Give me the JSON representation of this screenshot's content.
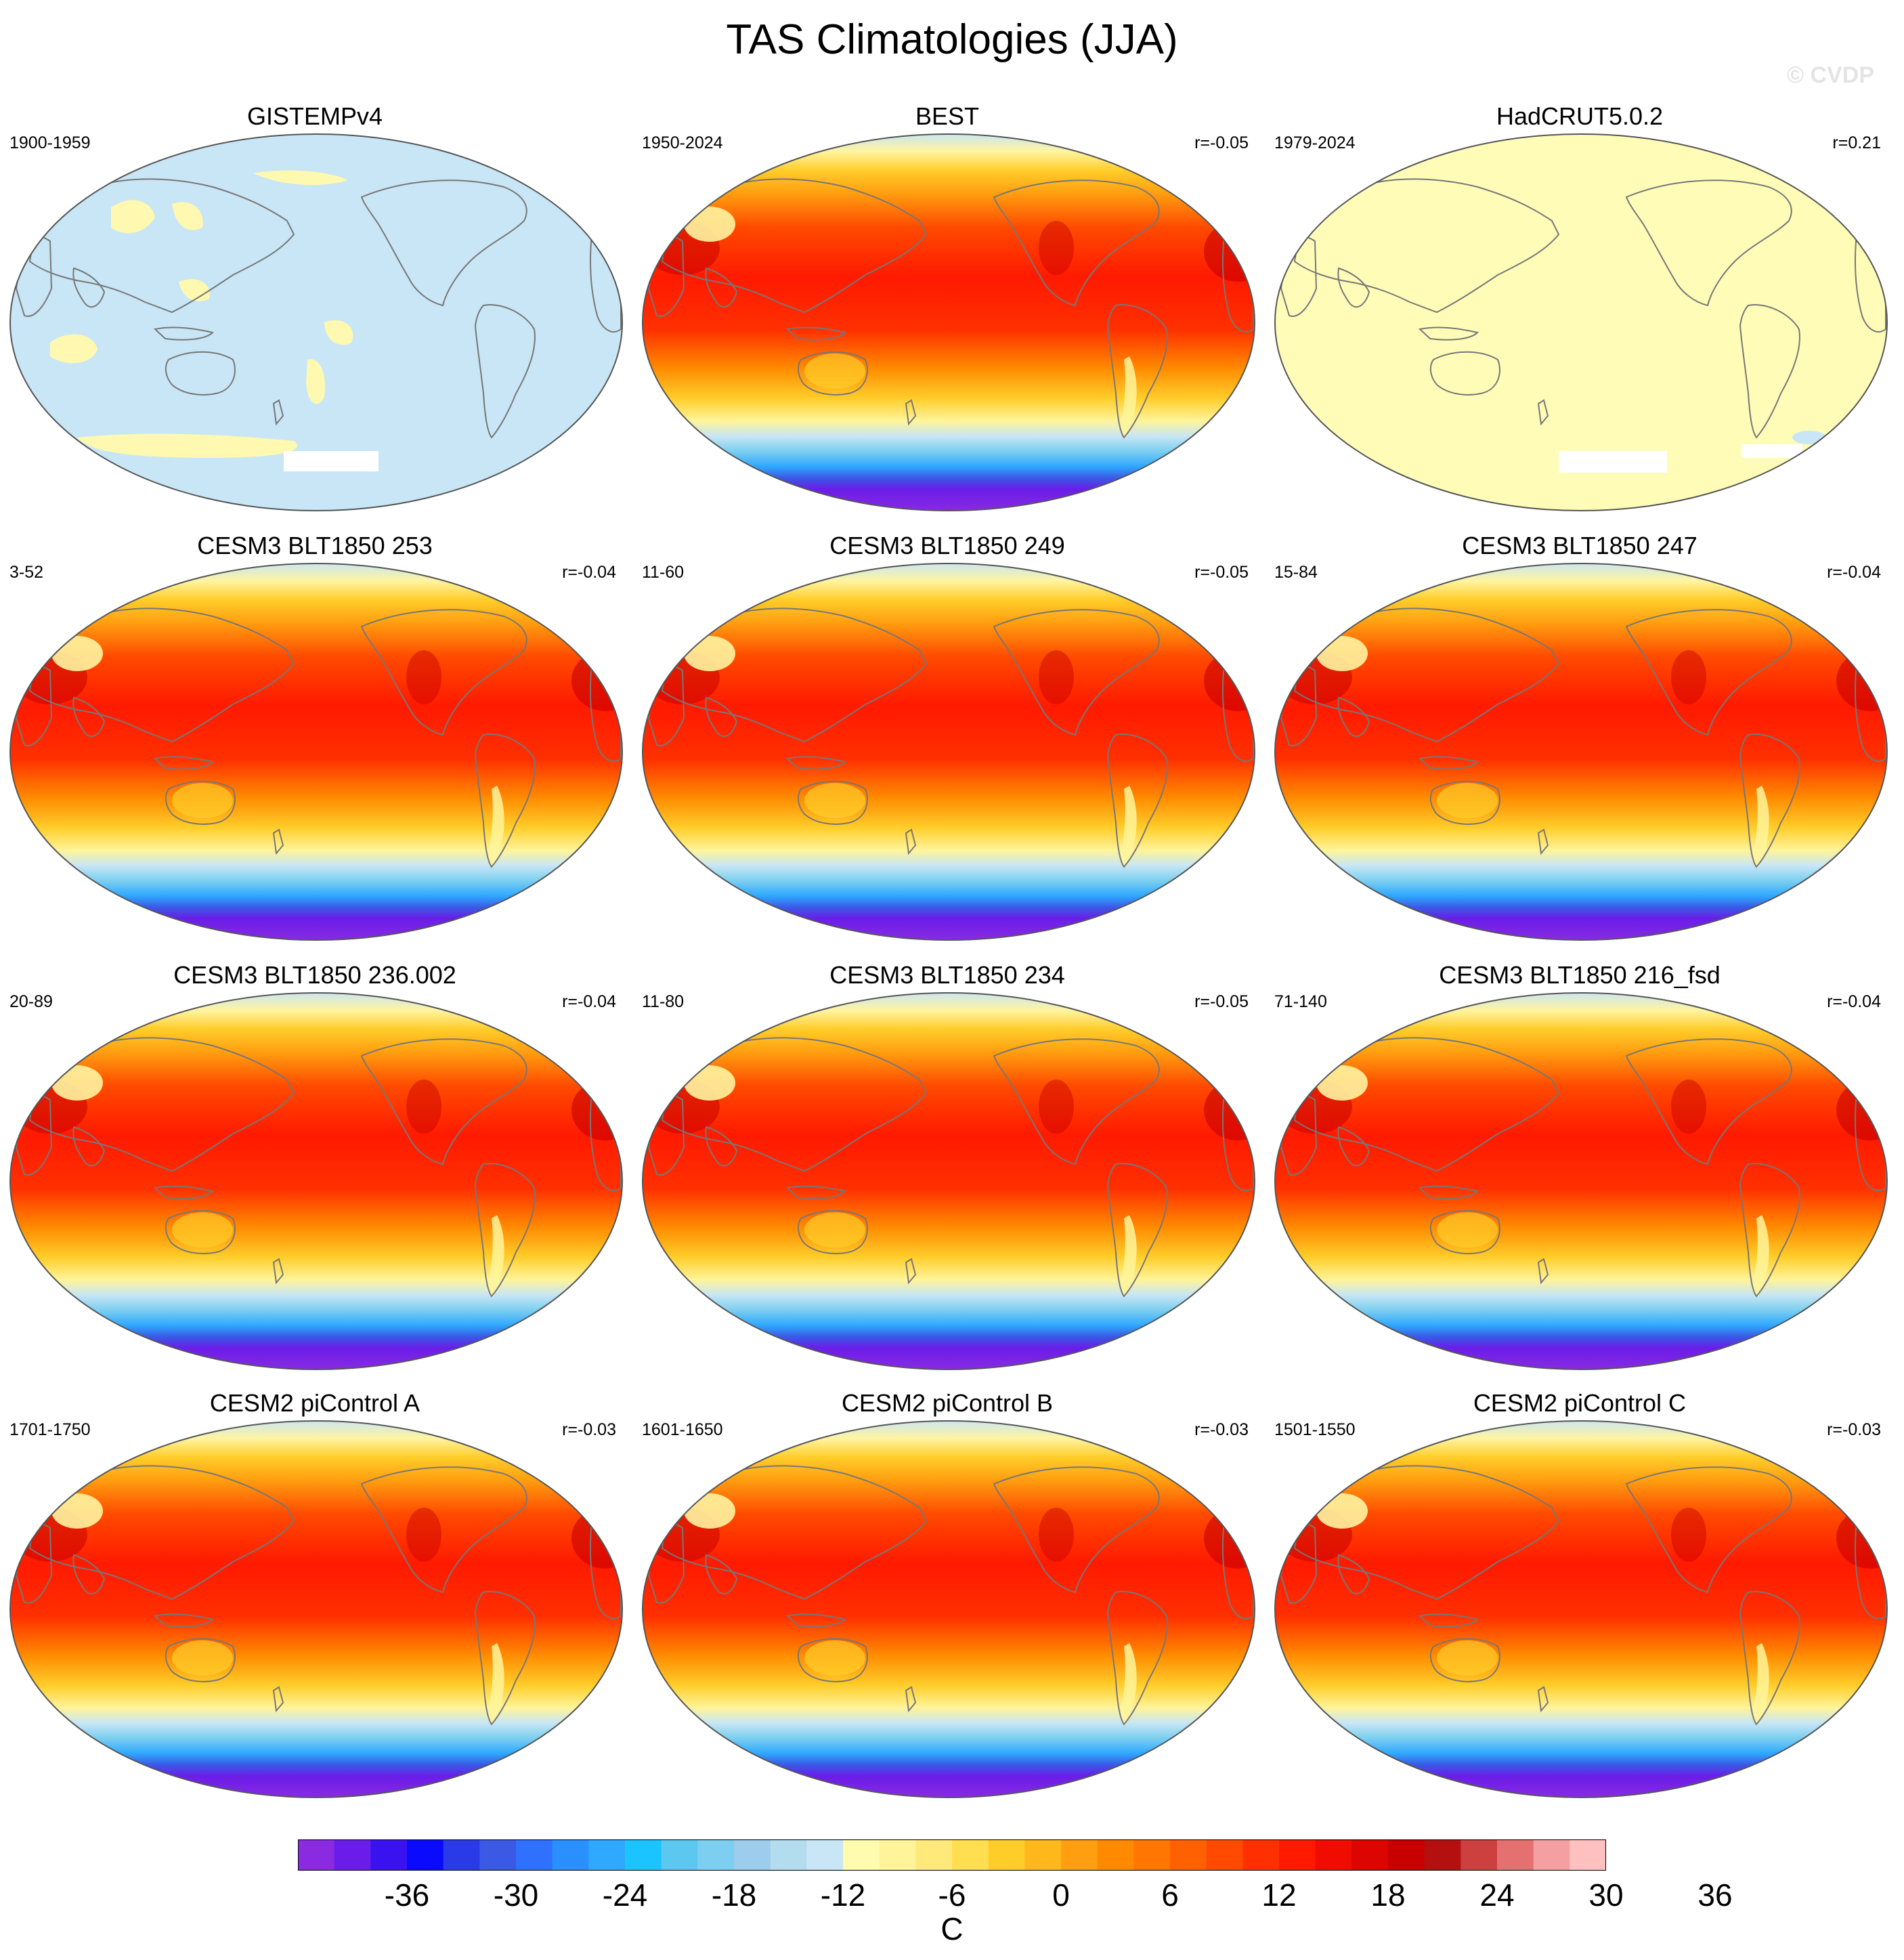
{
  "title": "TAS Climatologies (JJA)",
  "watermark": "© CVDP",
  "units": "C",
  "colorbar": {
    "colors": [
      "#8a2be2",
      "#6a1de8",
      "#3a12f0",
      "#0a0aff",
      "#2a3ae6",
      "#3a5ae6",
      "#3070ff",
      "#2a90ff",
      "#2fa8ff",
      "#1cc4ff",
      "#5cc8f0",
      "#7ccff0",
      "#9dcdec",
      "#b4dcef",
      "#c8e6f5",
      "#fffcb0",
      "#fff49a",
      "#ffe97a",
      "#ffdf50",
      "#ffcd2a",
      "#ffb81c",
      "#ff9e10",
      "#ff8a00",
      "#ff7600",
      "#ff6000",
      "#ff4a00",
      "#ff3000",
      "#ff1a00",
      "#f00c00",
      "#dc0500",
      "#c80000",
      "#b41010",
      "#cc4040",
      "#e47070",
      "#f4a0a0",
      "#ffc0c0"
    ],
    "labels": [
      "-36",
      "-30",
      "-24",
      "-18",
      "-12",
      "-6",
      "0",
      "6",
      "12",
      "18",
      "24",
      "30",
      "36"
    ]
  },
  "panels": [
    {
      "title": "GISTEMPv4",
      "period": "1900-1959",
      "r": "",
      "style": "gistemp"
    },
    {
      "title": "BEST",
      "period": "1950-2024",
      "r": "r=-0.05",
      "style": "model"
    },
    {
      "title": "HadCRUT5.0.2",
      "period": "1979-2024",
      "r": "r=0.21",
      "style": "hadcrut"
    },
    {
      "title": "CESM3 BLT1850 253",
      "period": "3-52",
      "r": "r=-0.04",
      "style": "model"
    },
    {
      "title": "CESM3 BLT1850 249",
      "period": "11-60",
      "r": "r=-0.05",
      "style": "model"
    },
    {
      "title": "CESM3 BLT1850 247",
      "period": "15-84",
      "r": "r=-0.04",
      "style": "model"
    },
    {
      "title": "CESM3 BLT1850 236.002",
      "period": "20-89",
      "r": "r=-0.04",
      "style": "model"
    },
    {
      "title": "CESM3 BLT1850 234",
      "period": "11-80",
      "r": "r=-0.05",
      "style": "model"
    },
    {
      "title": "CESM3 BLT1850 216_fsd",
      "period": "71-140",
      "r": "r=-0.04",
      "style": "model"
    },
    {
      "title": "CESM2 piControl A",
      "period": "1701-1750",
      "r": "r=-0.03",
      "style": "model"
    },
    {
      "title": "CESM2 piControl B",
      "period": "1601-1650",
      "r": "r=-0.03",
      "style": "model"
    },
    {
      "title": "CESM2 piControl C",
      "period": "1501-1550",
      "r": "r=-0.03",
      "style": "model"
    }
  ]
}
